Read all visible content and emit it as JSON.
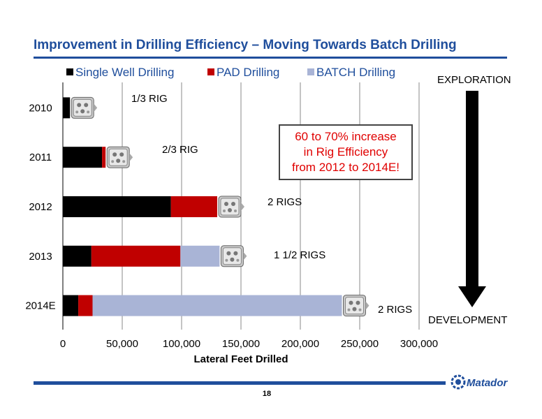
{
  "slide": {
    "title": "Improvement in Drilling Efficiency – Moving Towards Batch Drilling",
    "page_number": "18",
    "logo_text": "Matador",
    "exploration_label": "EXPLORATION",
    "development_label": "DEVELOPMENT",
    "callout_lines": [
      "60 to 70% increase",
      "in Rig Efficiency",
      "from 2012 to 2014E!"
    ]
  },
  "chart_data": {
    "type": "bar",
    "orientation": "horizontal",
    "stacked": true,
    "categories": [
      "2010",
      "2011",
      "2012",
      "2013",
      "2014E"
    ],
    "series": [
      {
        "name": "Single Well Drilling",
        "color": "#000000",
        "values": [
          6000,
          33000,
          91000,
          24000,
          13000
        ]
      },
      {
        "name": "PAD Drilling",
        "color": "#c00000",
        "values": [
          0,
          3000,
          39000,
          75000,
          12000
        ]
      },
      {
        "name": "BATCH Drilling",
        "color": "#a9b4d6",
        "values": [
          0,
          0,
          0,
          33000,
          210000
        ]
      }
    ],
    "rig_labels": [
      "1/3 RIG",
      "2/3 RIG",
      "2 RIGS",
      "1 1/2 RIGS",
      "2 RIGS"
    ],
    "xlabel": "Lateral Feet Drilled",
    "xlim": [
      0,
      300000
    ],
    "xticks": [
      "0",
      "50,000",
      "100,000",
      "150,000",
      "200,000",
      "250,000",
      "300,000"
    ],
    "grid": true,
    "legend": "top"
  }
}
